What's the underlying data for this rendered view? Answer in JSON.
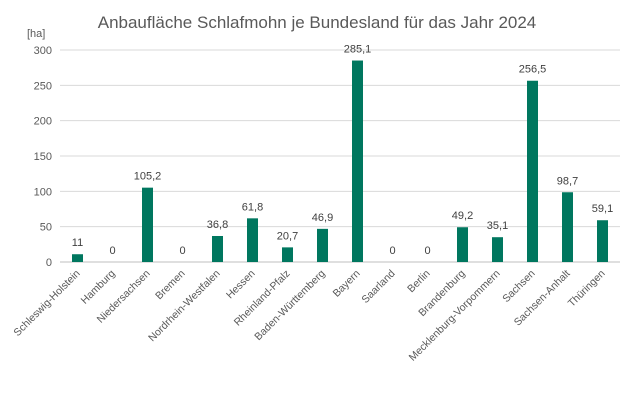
{
  "chart_data": {
    "type": "bar",
    "title": "Anbaufläche Schlafmohn je Bundesland für das Jahr 2024",
    "ylabel": "[ha]",
    "xlabel": "",
    "ylim": [
      0,
      300
    ],
    "yticks": [
      0,
      50,
      100,
      150,
      200,
      250,
      300
    ],
    "grid": true,
    "bar_color": "#00775F",
    "categories": [
      "Schleswig-Holstein",
      "Hamburg",
      "Niedersachsen",
      "Bremen",
      "Nordrhein-Westfalen",
      "Hessen",
      "Rheinland-Pfalz",
      "Baden-Württemberg",
      "Bayern",
      "Saarland",
      "Berlin",
      "Brandenburg",
      "Mecklenburg-Vorpommern",
      "Sachsen",
      "Sachsen-Anhalt",
      "Thüringen"
    ],
    "values": [
      11,
      0,
      105.2,
      0,
      36.8,
      61.8,
      20.7,
      46.9,
      285.1,
      0,
      0,
      49.2,
      35.1,
      256.5,
      98.7,
      59.1
    ],
    "data_labels": [
      "11",
      "0",
      "105,2",
      "0",
      "36,8",
      "61,8",
      "20,7",
      "46,9",
      "285,1",
      "0",
      "0",
      "49,2",
      "35,1",
      "256,5",
      "98,7",
      "59,1"
    ]
  }
}
